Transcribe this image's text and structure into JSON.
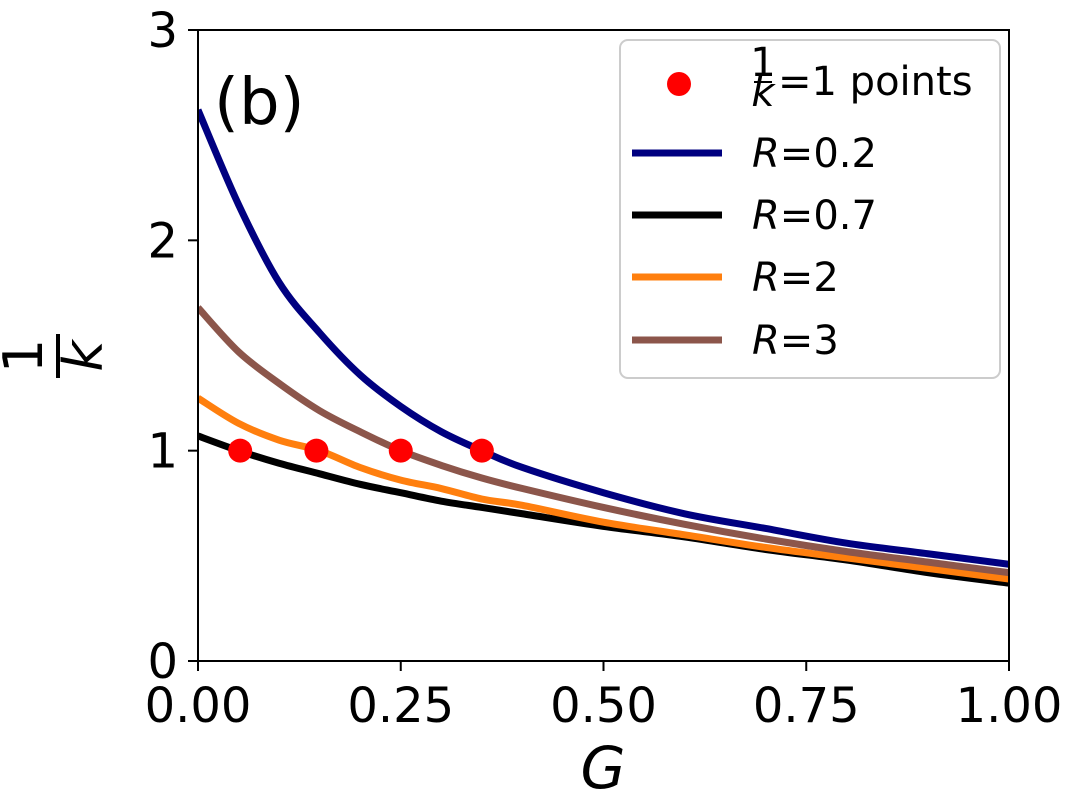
{
  "chart_data": {
    "type": "line",
    "panel_label": "(b)",
    "xlabel": "G",
    "ylabel": {
      "numerator": "1",
      "denominator": "k"
    },
    "xlim": [
      0,
      1
    ],
    "ylim": [
      0,
      3
    ],
    "xticks": [
      "0.00",
      "0.25",
      "0.50",
      "0.75",
      "1.00"
    ],
    "xtick_values": [
      0,
      0.25,
      0.5,
      0.75,
      1.0
    ],
    "yticks": [
      "0",
      "1",
      "2",
      "3"
    ],
    "ytick_values": [
      0,
      1,
      2,
      3
    ],
    "grid": false,
    "legend_position": "top-right",
    "series": [
      {
        "name": "R=0.2",
        "label_var": "R",
        "label_rest": "=0.2",
        "color": "#000080",
        "x": [
          0,
          0.05,
          0.1,
          0.15,
          0.2,
          0.25,
          0.3,
          0.35,
          0.4,
          0.5,
          0.6,
          0.7,
          0.8,
          0.9,
          1.0
        ],
        "y": [
          2.62,
          2.17,
          1.8,
          1.56,
          1.36,
          1.21,
          1.09,
          1.0,
          0.92,
          0.8,
          0.7,
          0.63,
          0.56,
          0.51,
          0.46
        ]
      },
      {
        "name": "R=0.7",
        "label_var": "R",
        "label_rest": "=0.7",
        "color": "#000000",
        "x": [
          0,
          0.05,
          0.1,
          0.15,
          0.2,
          0.25,
          0.3,
          0.35,
          0.4,
          0.5,
          0.6,
          0.7,
          0.8,
          0.9,
          1.0
        ],
        "y": [
          1.07,
          1.0,
          0.94,
          0.89,
          0.84,
          0.8,
          0.76,
          0.73,
          0.7,
          0.64,
          0.59,
          0.53,
          0.48,
          0.42,
          0.37
        ]
      },
      {
        "name": "R=2",
        "label_var": "R",
        "label_rest": "=2",
        "color": "#ff7f0e",
        "x": [
          0,
          0.05,
          0.1,
          0.15,
          0.2,
          0.25,
          0.3,
          0.35,
          0.4,
          0.5,
          0.6,
          0.7,
          0.8,
          0.9,
          1.0
        ],
        "y": [
          1.25,
          1.13,
          1.05,
          1.0,
          0.92,
          0.86,
          0.82,
          0.77,
          0.74,
          0.66,
          0.6,
          0.54,
          0.49,
          0.44,
          0.39
        ]
      },
      {
        "name": "R=3",
        "label_var": "R",
        "label_rest": "=3",
        "color": "#8c564b",
        "x": [
          0,
          0.05,
          0.1,
          0.15,
          0.2,
          0.25,
          0.3,
          0.35,
          0.4,
          0.5,
          0.6,
          0.7,
          0.8,
          0.9,
          1.0
        ],
        "y": [
          1.68,
          1.47,
          1.32,
          1.19,
          1.09,
          1.0,
          0.93,
          0.87,
          0.82,
          0.73,
          0.65,
          0.58,
          0.52,
          0.47,
          0.42
        ]
      }
    ],
    "points": {
      "name": "1/k=1 points",
      "label_frac_num": "1",
      "label_frac_den": "k",
      "label_rest": "=1 points",
      "color": "#ff0000",
      "x": [
        0.052,
        0.146,
        0.25,
        0.35
      ],
      "y": [
        1,
        1,
        1,
        1
      ]
    }
  }
}
